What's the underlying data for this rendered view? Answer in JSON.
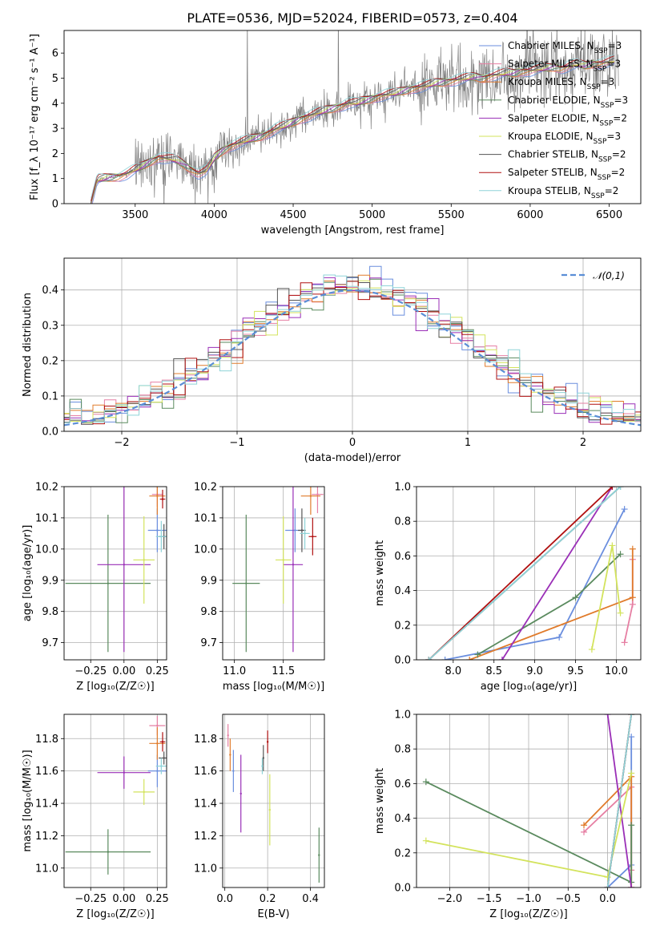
{
  "colors": {
    "chabrier_miles": "#6a8ede",
    "salpeter_miles": "#e67fa3",
    "kroupa_miles": "#e07b2b",
    "chabrier_elodie": "#5a8a5e",
    "salpeter_elodie": "#9a2fb7",
    "kroupa_elodie": "#d3e35c",
    "chabrier_stelib": "#555555",
    "salpeter_stelib": "#b01010",
    "kroupa_stelib": "#8fd3d8",
    "gaussian": "#5a8ed6",
    "data_spectrum": "#808080"
  },
  "chart_data": [
    {
      "id": "spectrum",
      "type": "line",
      "title": "PLATE=0536, MJD=52024, FIBERID=0573, z=0.404",
      "xlabel": "wavelength [Angstrom, rest frame]",
      "ylabel": "Flux [f_λ 10⁻¹⁷ erg cm⁻² s⁻¹ A⁻¹]",
      "xlim": [
        3050,
        6700
      ],
      "ylim": [
        0,
        6.9
      ],
      "xticks": [
        "3500",
        "4000",
        "4500",
        "5000",
        "5500",
        "6000",
        "6500"
      ],
      "yticks": [
        "0",
        "1",
        "2",
        "3",
        "4",
        "5",
        "6"
      ],
      "grid": false,
      "legend_position": "right",
      "model_x": [
        3220,
        3260,
        3300,
        3350,
        3400,
        3450,
        3500,
        3550,
        3600,
        3650,
        3700,
        3750,
        3800,
        3850,
        3900,
        3950,
        4000,
        4050,
        4100,
        4150,
        4200,
        4250,
        4300,
        4350,
        4400,
        4450,
        4500,
        4550,
        4600,
        4650,
        4700,
        4750,
        4800,
        4850,
        4900,
        4950,
        5000,
        5050,
        5100,
        5150,
        5200,
        5250,
        5300,
        5350,
        5400,
        5450,
        5500,
        5550,
        5600,
        5650,
        5700,
        5750,
        5800,
        5850,
        5900,
        5950,
        6000,
        6050,
        6100,
        6150,
        6200,
        6250,
        6300,
        6350,
        6400,
        6450,
        6500,
        6540
      ],
      "model_y": [
        0,
        0.95,
        1.0,
        1.05,
        1.1,
        1.2,
        1.35,
        1.5,
        1.7,
        1.85,
        1.8,
        1.75,
        1.6,
        1.4,
        1.2,
        1.3,
        1.8,
        2.1,
        2.3,
        2.4,
        2.5,
        2.6,
        2.7,
        2.85,
        3.0,
        3.1,
        3.25,
        3.4,
        3.5,
        3.6,
        3.7,
        3.8,
        3.9,
        4.0,
        4.0,
        4.1,
        4.2,
        4.3,
        4.35,
        4.4,
        4.5,
        4.6,
        4.65,
        4.7,
        4.8,
        4.85,
        4.9,
        4.95,
        5.0,
        5.05,
        5.0,
        5.1,
        5.15,
        5.2,
        5.2,
        5.3,
        5.3,
        5.35,
        5.4,
        5.45,
        5.4,
        5.5,
        5.55,
        5.5,
        5.6,
        5.6,
        5.65,
        5.7
      ],
      "series": [
        {
          "name": "Chabrier MILES, N_SSP=3",
          "color_key": "chabrier_miles"
        },
        {
          "name": "Salpeter MILES, N_SSP=3",
          "color_key": "salpeter_miles"
        },
        {
          "name": "Kroupa MILES, N_SSP=3",
          "color_key": "kroupa_miles"
        },
        {
          "name": "Chabrier ELODIE, N_SSP=3",
          "color_key": "chabrier_elodie"
        },
        {
          "name": "Salpeter ELODIE, N_SSP=2",
          "color_key": "salpeter_elodie"
        },
        {
          "name": "Kroupa ELODIE, N_SSP=3",
          "color_key": "kroupa_elodie"
        },
        {
          "name": "Chabrier STELIB, N_SSP=2",
          "color_key": "chabrier_stelib"
        },
        {
          "name": "Salpeter STELIB, N_SSP=2",
          "color_key": "salpeter_stelib"
        },
        {
          "name": "Kroupa STELIB, N_SSP=2",
          "color_key": "kroupa_stelib"
        }
      ]
    },
    {
      "id": "residuals",
      "type": "line",
      "xlabel": "(data-model)/error",
      "ylabel": "Normed distribution",
      "xlim": [
        -2.5,
        2.5
      ],
      "ylim": [
        0,
        0.49
      ],
      "xticks": [
        -2,
        -1,
        0,
        1,
        2
      ],
      "yticks": [
        "0.0",
        "0.1",
        "0.2",
        "0.3",
        "0.4"
      ],
      "grid": true,
      "legend_position": "top-right",
      "legend": "𝒩(0,1)",
      "bin_width": 0.1
    },
    {
      "id": "age_vs_Z",
      "type": "scatter",
      "xlabel": "Z [log₁₀(Z/Z☉)]",
      "ylabel": "age  [log₁₀(age/yr)]",
      "xlim": [
        -0.45,
        0.32
      ],
      "ylim": [
        9.645,
        10.2
      ],
      "xticks": [
        "−0.25",
        "0.00",
        "0.25"
      ],
      "yticks": [
        "9.7",
        "9.8",
        "9.9",
        "10.0",
        "10.1",
        "10.2"
      ],
      "grid": true,
      "points": [
        {
          "series": "Chabrier MILES",
          "x": 0.25,
          "y": 10.06,
          "xerr": 0.07,
          "yerr": 0.07
        },
        {
          "series": "Salpeter MILES",
          "x": 0.25,
          "y": 10.175,
          "xerr": 0.04,
          "yerr": 0.04
        },
        {
          "series": "Kroupa MILES",
          "x": 0.25,
          "y": 10.17,
          "xerr": 0.06,
          "yerr": 0.06
        },
        {
          "series": "Chabrier ELODIE",
          "x": -0.12,
          "y": 9.89,
          "xerr": 0.32,
          "yerr": 0.22
        },
        {
          "series": "Salpeter ELODIE",
          "x": 0.0,
          "y": 9.95,
          "xerr": 0.2,
          "yerr": 0.28
        },
        {
          "series": "Kroupa ELODIE",
          "x": 0.15,
          "y": 9.965,
          "xerr": 0.08,
          "yerr": 0.14
        },
        {
          "series": "Chabrier STELIB",
          "x": 0.3,
          "y": 10.04,
          "xerr": 0.04,
          "yerr": 0.04
        },
        {
          "series": "Salpeter STELIB",
          "x": 0.29,
          "y": 10.16,
          "xerr": 0.02,
          "yerr": 0.03
        },
        {
          "series": "Kroupa STELIB",
          "x": 0.28,
          "y": 10.04,
          "xerr": 0.04,
          "yerr": 0.05
        }
      ]
    },
    {
      "id": "age_vs_mass",
      "type": "scatter",
      "xlabel": "mass [log₁₀(M/M☉)]",
      "ylabel": "",
      "xlim": [
        10.88,
        11.92
      ],
      "ylim": [
        9.645,
        10.2
      ],
      "xticks": [
        "11.0",
        "11.5"
      ],
      "yticks": [
        "9.7",
        "9.8",
        "9.9",
        "10.0",
        "10.1",
        "10.2"
      ],
      "grid": true,
      "points": [
        {
          "series": "Chabrier MILES",
          "x": 11.62,
          "y": 10.06,
          "xerr": 0.1,
          "yerr": 0.07
        },
        {
          "series": "Salpeter MILES",
          "x": 11.85,
          "y": 10.175,
          "xerr": 0.06,
          "yerr": 0.06
        },
        {
          "series": "Kroupa MILES",
          "x": 11.78,
          "y": 10.17,
          "xerr": 0.1,
          "yerr": 0.06
        },
        {
          "series": "Chabrier ELODIE",
          "x": 11.12,
          "y": 9.89,
          "xerr": 0.14,
          "yerr": 0.22
        },
        {
          "series": "Salpeter ELODIE",
          "x": 11.6,
          "y": 9.95,
          "xerr": 0.1,
          "yerr": 0.28
        },
        {
          "series": "Kroupa ELODIE",
          "x": 11.5,
          "y": 9.965,
          "xerr": 0.08,
          "yerr": 0.14
        },
        {
          "series": "Chabrier STELIB",
          "x": 11.69,
          "y": 10.06,
          "xerr": 0.04,
          "yerr": 0.07
        },
        {
          "series": "Salpeter STELIB",
          "x": 11.8,
          "y": 10.04,
          "xerr": 0.04,
          "yerr": 0.06
        },
        {
          "series": "Kroupa STELIB",
          "x": 11.72,
          "y": 10.05,
          "xerr": 0.05,
          "yerr": 0.05
        }
      ]
    },
    {
      "id": "weight_vs_age",
      "type": "line",
      "xlabel": "age  [log₁₀(age/yr)]",
      "ylabel": "mass weight",
      "xlim": [
        7.55,
        10.3
      ],
      "ylim": [
        0,
        1.0
      ],
      "xticks": [
        "8.0",
        "8.5",
        "9.0",
        "9.5",
        "10.0"
      ],
      "yticks": [
        "0.0",
        "0.2",
        "0.4",
        "0.6",
        "0.8",
        "1.0"
      ],
      "grid": true,
      "series": [
        {
          "series": "Chabrier MILES",
          "x": [
            7.9,
            9.3,
            10.1
          ],
          "y": [
            0.0,
            0.13,
            0.87
          ]
        },
        {
          "series": "Salpeter MILES",
          "x": [
            10.1,
            10.2,
            10.2
          ],
          "y": [
            0.1,
            0.32,
            0.58
          ]
        },
        {
          "series": "Kroupa MILES",
          "x": [
            8.2,
            10.2,
            10.2
          ],
          "y": [
            0.0,
            0.36,
            0.64
          ]
        },
        {
          "series": "Chabrier ELODIE",
          "x": [
            8.3,
            9.5,
            10.05
          ],
          "y": [
            0.03,
            0.36,
            0.61
          ]
        },
        {
          "series": "Salpeter ELODIE",
          "x": [
            8.6,
            9.95
          ],
          "y": [
            0.0,
            1.0
          ]
        },
        {
          "series": "Kroupa ELODIE",
          "x": [
            9.7,
            9.95,
            10.05
          ],
          "y": [
            0.06,
            0.66,
            0.27
          ]
        },
        {
          "series": "Chabrier STELIB",
          "x": [
            7.7,
            10.05
          ],
          "y": [
            0.0,
            1.0
          ]
        },
        {
          "series": "Salpeter STELIB",
          "x": [
            7.7,
            9.95
          ],
          "y": [
            0.0,
            1.0
          ]
        },
        {
          "series": "Kroupa STELIB",
          "x": [
            7.7,
            10.05
          ],
          "y": [
            0.0,
            1.0
          ]
        }
      ]
    },
    {
      "id": "mass_vs_Z",
      "type": "scatter",
      "xlabel": "Z [log₁₀(Z/Z☉)]",
      "ylabel": "mass [log₁₀(M/M☉)]",
      "xlim": [
        -0.45,
        0.32
      ],
      "ylim": [
        10.88,
        11.95
      ],
      "xticks": [
        "−0.25",
        "0.00",
        "0.25"
      ],
      "yticks": [
        "11.0",
        "11.2",
        "11.4",
        "11.6",
        "11.8"
      ],
      "grid": true,
      "points": [
        {
          "series": "Chabrier MILES",
          "x": 0.25,
          "y": 11.6,
          "xerr": 0.07,
          "yerr": 0.1
        },
        {
          "series": "Salpeter MILES",
          "x": 0.25,
          "y": 11.88,
          "xerr": 0.06,
          "yerr": 0.06
        },
        {
          "series": "Kroupa MILES",
          "x": 0.25,
          "y": 11.77,
          "xerr": 0.06,
          "yerr": 0.1
        },
        {
          "series": "Chabrier ELODIE",
          "x": -0.12,
          "y": 11.1,
          "xerr": 0.32,
          "yerr": 0.14
        },
        {
          "series": "Salpeter ELODIE",
          "x": 0.0,
          "y": 11.59,
          "xerr": 0.2,
          "yerr": 0.1
        },
        {
          "series": "Kroupa ELODIE",
          "x": 0.15,
          "y": 11.47,
          "xerr": 0.08,
          "yerr": 0.08
        },
        {
          "series": "Chabrier STELIB",
          "x": 0.3,
          "y": 11.68,
          "xerr": 0.04,
          "yerr": 0.04
        },
        {
          "series": "Salpeter STELIB",
          "x": 0.29,
          "y": 11.78,
          "xerr": 0.02,
          "yerr": 0.06
        },
        {
          "series": "Kroupa STELIB",
          "x": 0.28,
          "y": 11.63,
          "xerr": 0.04,
          "yerr": 0.05
        }
      ]
    },
    {
      "id": "mass_vs_ebv",
      "type": "scatter",
      "xlabel": "E(B-V)",
      "ylabel": "",
      "xlim": [
        -0.01,
        0.465
      ],
      "ylim": [
        10.88,
        11.95
      ],
      "xticks": [
        "0.0",
        "0.2",
        "0.4"
      ],
      "yticks": [
        "11.0",
        "11.2",
        "11.4",
        "11.6",
        "11.8"
      ],
      "grid": true,
      "points": [
        {
          "series": "Chabrier MILES",
          "x": 0.04,
          "y": 11.6,
          "xerr": 0,
          "yerr": 0.13
        },
        {
          "series": "Salpeter MILES",
          "x": 0.015,
          "y": 11.82,
          "xerr": 0,
          "yerr": 0.07
        },
        {
          "series": "Kroupa MILES",
          "x": 0.025,
          "y": 11.7,
          "xerr": 0,
          "yerr": 0.1
        },
        {
          "series": "Chabrier ELODIE",
          "x": 0.44,
          "y": 11.08,
          "xerr": 0,
          "yerr": 0.17
        },
        {
          "series": "Salpeter ELODIE",
          "x": 0.075,
          "y": 11.46,
          "xerr": 0,
          "yerr": 0.24
        },
        {
          "series": "Kroupa ELODIE",
          "x": 0.21,
          "y": 11.36,
          "xerr": 0,
          "yerr": 0.22
        },
        {
          "series": "Chabrier STELIB",
          "x": 0.18,
          "y": 11.68,
          "xerr": 0,
          "yerr": 0.08
        },
        {
          "series": "Salpeter STELIB",
          "x": 0.2,
          "y": 11.78,
          "xerr": 0,
          "yerr": 0.07
        },
        {
          "series": "Kroupa STELIB",
          "x": 0.175,
          "y": 11.63,
          "xerr": 0,
          "yerr": 0.05
        }
      ]
    },
    {
      "id": "weight_vs_Z",
      "type": "line",
      "xlabel": "Z [log₁₀(Z/Z☉)]",
      "ylabel": "mass weight",
      "xlim": [
        -2.42,
        0.42
      ],
      "ylim": [
        0,
        1.0
      ],
      "xticks": [
        "−2.0",
        "−1.5",
        "−1.0",
        "−0.5",
        "0.0"
      ],
      "yticks": [
        "0.0",
        "0.2",
        "0.4",
        "0.6",
        "0.8",
        "1.0"
      ],
      "grid": true,
      "series": [
        {
          "series": "Chabrier MILES",
          "x": [
            0.0,
            0.3,
            0.3
          ],
          "y": [
            0.0,
            0.13,
            0.87
          ]
        },
        {
          "series": "Salpeter MILES",
          "x": [
            -0.3,
            0.3,
            0.3
          ],
          "y": [
            0.32,
            0.58,
            0.1
          ]
        },
        {
          "series": "Kroupa MILES",
          "x": [
            -0.3,
            0.3,
            0.3
          ],
          "y": [
            0.36,
            0.64,
            0.0
          ]
        },
        {
          "series": "Chabrier ELODIE",
          "x": [
            -2.3,
            0.3,
            0.3
          ],
          "y": [
            0.61,
            0.03,
            0.36
          ]
        },
        {
          "series": "Salpeter ELODIE",
          "x": [
            0.0,
            0.3
          ],
          "y": [
            1.0,
            0.0
          ]
        },
        {
          "series": "Kroupa ELODIE",
          "x": [
            -2.3,
            0.0,
            0.3
          ],
          "y": [
            0.27,
            0.06,
            0.66
          ]
        },
        {
          "series": "Chabrier STELIB",
          "x": [
            0.0,
            0.3
          ],
          "y": [
            0.0,
            1.0
          ]
        },
        {
          "series": "Salpeter STELIB",
          "x": [
            0.0,
            0.3
          ],
          "y": [
            0.0,
            1.0
          ]
        },
        {
          "series": "Kroupa STELIB",
          "x": [
            0.0,
            0.3
          ],
          "y": [
            0.0,
            1.0
          ]
        }
      ]
    }
  ]
}
